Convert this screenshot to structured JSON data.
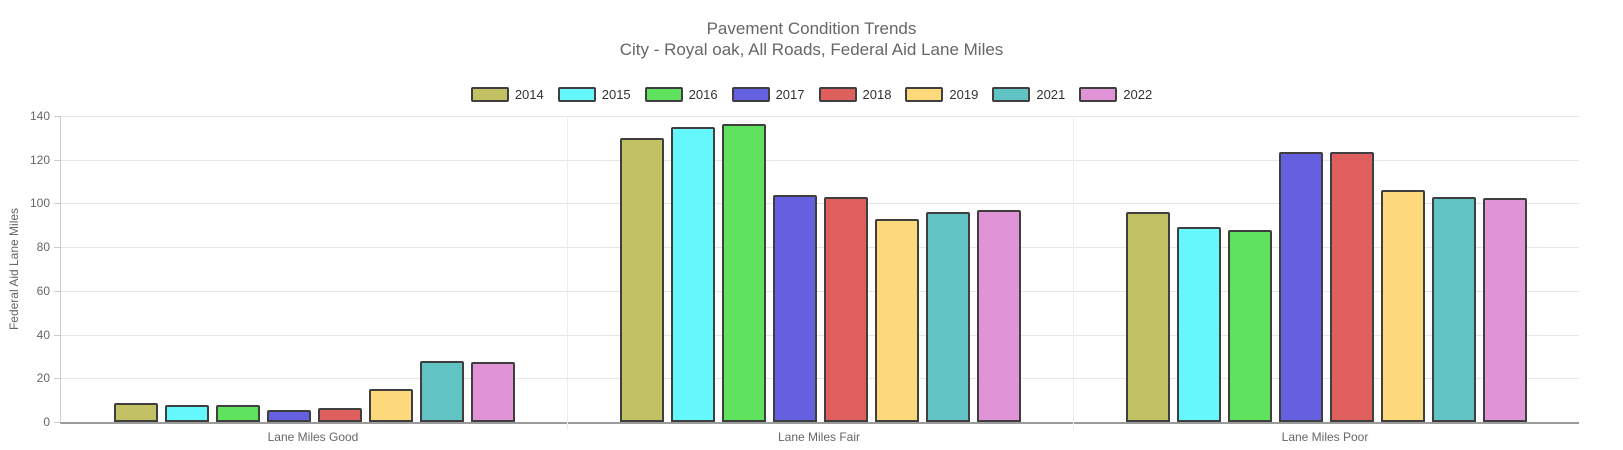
{
  "chart": {
    "title": "Pavement Condition Trends",
    "subtitle": "City - Royal oak, All Roads, Federal Aid Lane Miles",
    "ylabel": "Federal Aid Lane Miles"
  },
  "chart_data": {
    "type": "bar",
    "title": "Pavement Condition Trends",
    "subtitle": "City - Royal oak, All Roads, Federal Aid Lane Miles",
    "xlabel": "",
    "ylabel": "Federal Aid Lane Miles",
    "ylim": [
      0,
      140
    ],
    "ytick_step": 20,
    "grid": true,
    "legend_position": "top",
    "categories": [
      "Lane Miles Good",
      "Lane Miles Fair",
      "Lane Miles Poor"
    ],
    "series": [
      {
        "name": "2014",
        "color": "#c2c164",
        "values": [
          8.7,
          130.0,
          96.0
        ]
      },
      {
        "name": "2015",
        "color": "#64f8fd",
        "values": [
          8.0,
          135.0,
          89.2
        ]
      },
      {
        "name": "2016",
        "color": "#5fe35f",
        "values": [
          7.9,
          136.5,
          88.0
        ]
      },
      {
        "name": "2017",
        "color": "#6560df",
        "values": [
          5.5,
          104.0,
          123.4
        ]
      },
      {
        "name": "2018",
        "color": "#df5f5f",
        "values": [
          6.4,
          103.0,
          123.7
        ]
      },
      {
        "name": "2019",
        "color": "#fed97b",
        "values": [
          14.9,
          92.8,
          106.2
        ]
      },
      {
        "name": "2021",
        "color": "#62c3c4",
        "values": [
          28.0,
          96.2,
          103.1
        ]
      },
      {
        "name": "2022",
        "color": "#e193d8",
        "values": [
          27.5,
          96.8,
          102.5
        ]
      }
    ],
    "bar_border_color": "#3f3f3f",
    "gridline_color": "#e7e7e7",
    "axis_line_color": "#9a9a9a",
    "text_color": "#666666"
  }
}
